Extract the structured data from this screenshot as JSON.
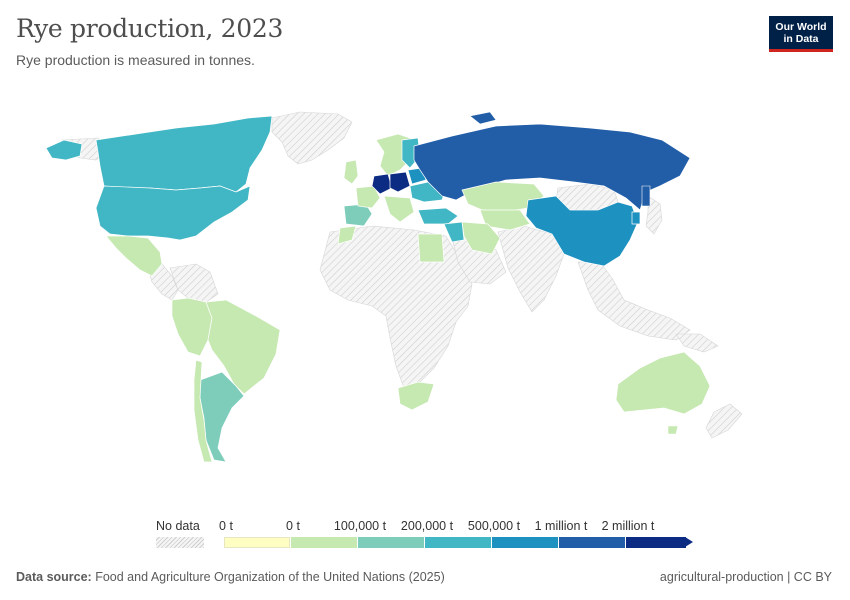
{
  "header": {
    "title": "Rye production, 2023",
    "subtitle": "Rye production is measured in tonnes."
  },
  "logo": {
    "line1": "Our World",
    "line2": "in Data"
  },
  "legend": {
    "no_data_label": "No data",
    "bins": [
      {
        "label": "0 t",
        "color": "#fefec2"
      },
      {
        "label": "0 t",
        "color": "#c6e8b1"
      },
      {
        "label": "100,000 t",
        "color": "#7ecdbb"
      },
      {
        "label": "200,000 t",
        "color": "#41b6c4"
      },
      {
        "label": "500,000 t",
        "color": "#1d91c0"
      },
      {
        "label": "1 million t",
        "color": "#225ea8"
      },
      {
        "label": "2 million t",
        "color": "#0c2c84"
      }
    ]
  },
  "footer": {
    "source_label": "Data source:",
    "source_text": "Food and Agriculture Organization of the United Nations (2025)",
    "right_text": "agricultural-production | CC BY"
  },
  "colors": {
    "no_data_fill": "#f2f2f2",
    "border": "#ffffff",
    "bin_light": "#c6e8b1",
    "bin_teal": "#7ecdbb",
    "bin_cyan": "#41b6c4",
    "bin_blue": "#1d91c0",
    "bin_darkblue": "#225ea8",
    "bin_navy": "#0c2c84"
  }
}
